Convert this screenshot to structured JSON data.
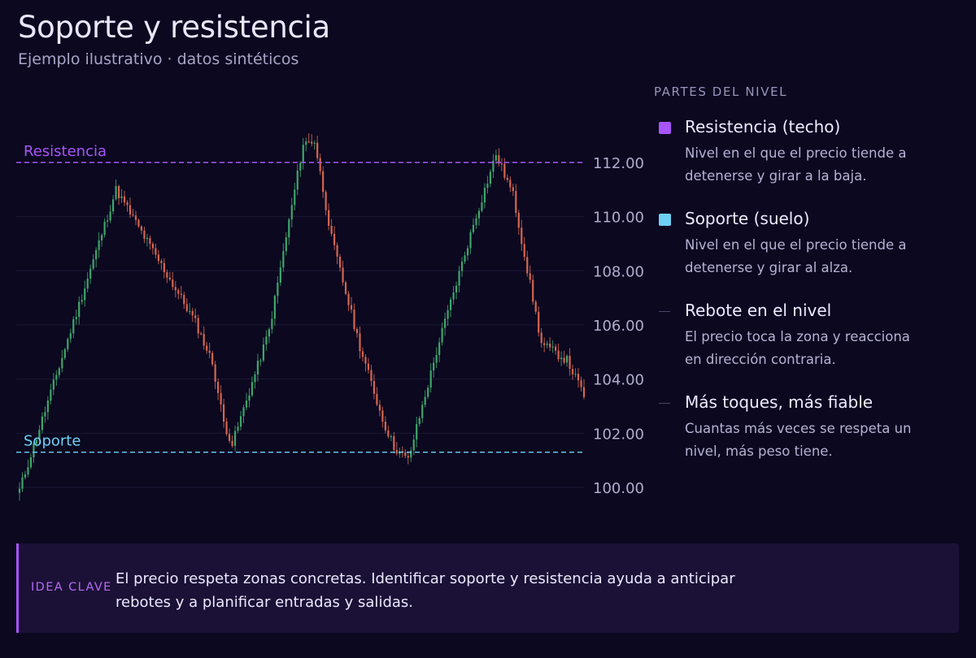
{
  "header": {
    "title": "Soporte y resistencia",
    "subtitle": "Ejemplo ilustrativo · datos sintéticos"
  },
  "colors": {
    "background": "#0b0820",
    "up": "#3fa56a",
    "down": "#d4664f",
    "resistance": "#a855f7",
    "support": "#6fd0f5",
    "grid": "#1c1836",
    "callout_bg": "#1b1136"
  },
  "chart_data": {
    "type": "candlestick",
    "ylim": [
      99.4,
      113.8
    ],
    "y_ticks": [
      "100.00",
      "102.00",
      "104.00",
      "106.00",
      "108.00",
      "110.00",
      "112.00"
    ],
    "grid": true,
    "levels": [
      {
        "label": "Resistencia",
        "value": 112.0,
        "color": "#a855f7"
      },
      {
        "label": "Soporte",
        "value": 101.3,
        "color": "#6fd0f5"
      }
    ],
    "candle_count": 200,
    "path_keypoints": [
      [
        0,
        99.9
      ],
      [
        34,
        111.0
      ],
      [
        50,
        108.2
      ],
      [
        62,
        106.1
      ],
      [
        68,
        104.6
      ],
      [
        72,
        102.4
      ],
      [
        75,
        101.6
      ],
      [
        88,
        105.8
      ],
      [
        100,
        112.7
      ],
      [
        104,
        112.8
      ],
      [
        110,
        109.2
      ],
      [
        120,
        105.2
      ],
      [
        128,
        102.5
      ],
      [
        132,
        101.5
      ],
      [
        137,
        101.0
      ],
      [
        148,
        105.4
      ],
      [
        160,
        109.7
      ],
      [
        168,
        112.3
      ],
      [
        174,
        110.8
      ],
      [
        184,
        105.3
      ],
      [
        193,
        104.7
      ],
      [
        199,
        103.4
      ]
    ]
  },
  "legend": {
    "heading": "PARTES DEL NIVEL",
    "items": [
      {
        "title": "Resistencia (techo)",
        "desc": "Nivel en el que el precio tiende a detenerse y girar a la baja.",
        "color": "#a855f7"
      },
      {
        "title": "Soporte (suelo)",
        "desc": "Nivel en el que el precio tiende a detenerse y girar al alza.",
        "color": "#6fd0f5"
      },
      {
        "title": "Rebote en el nivel",
        "desc": "El precio toca la zona y reacciona en dirección contraria.",
        "color": "#4a4566"
      },
      {
        "title": "Más toques, más fiable",
        "desc": "Cuantas más veces se respeta un nivel, más peso tiene.",
        "color": "#4a4566"
      }
    ]
  },
  "callout": {
    "label": "IDEA CLAVE",
    "text": "El precio respeta zonas concretas. Identificar soporte y resistencia ayuda a anticipar rebotes y a planificar entradas y salidas."
  }
}
